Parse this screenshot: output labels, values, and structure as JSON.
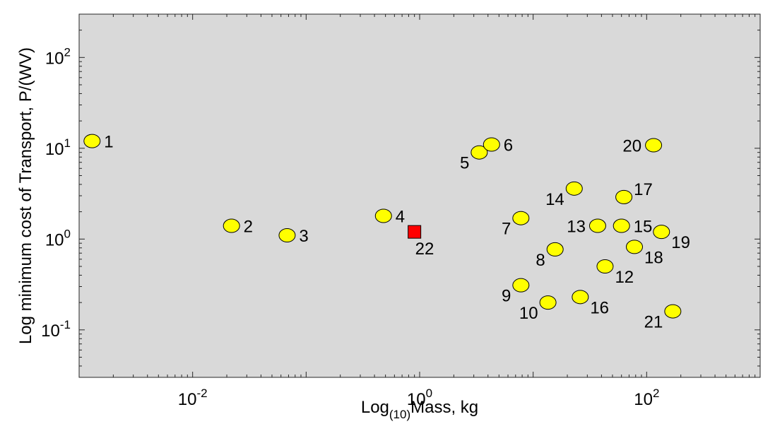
{
  "chart_data": {
    "type": "scatter",
    "title": "",
    "xlabel": {
      "prefix": "Log",
      "subscript": "(10)",
      "suffix": "Mass, kg"
    },
    "ylabel": "Log minimum cost of Transport, P/(WV)",
    "xscale": "log",
    "yscale": "log",
    "xlim": [
      0.001,
      1000
    ],
    "ylim": [
      0.03,
      300
    ],
    "grid": false,
    "x_ticks": [
      {
        "base": "10",
        "exp": "-2",
        "value": 0.01
      },
      {
        "base": "10",
        "exp": "0",
        "value": 1
      },
      {
        "base": "10",
        "exp": "2",
        "value": 100
      }
    ],
    "y_ticks": [
      {
        "base": "10",
        "exp": "-1",
        "value": 0.1
      },
      {
        "base": "10",
        "exp": "0",
        "value": 1
      },
      {
        "base": "10",
        "exp": "1",
        "value": 10
      },
      {
        "base": "10",
        "exp": "2",
        "value": 100
      }
    ],
    "marker_colors": {
      "ellipse": "#ffff00",
      "square": "#ff0000",
      "edge": "#000000",
      "axes": "#d9d9d9"
    },
    "points": [
      {
        "label": "1",
        "x": 0.0013,
        "y": 12.0,
        "marker": "ellipse",
        "label_pos": "right"
      },
      {
        "label": "2",
        "x": 0.022,
        "y": 1.4,
        "marker": "ellipse",
        "label_pos": "right"
      },
      {
        "label": "3",
        "x": 0.068,
        "y": 1.1,
        "marker": "ellipse",
        "label_pos": "right"
      },
      {
        "label": "4",
        "x": 0.48,
        "y": 1.8,
        "marker": "ellipse",
        "label_pos": "right"
      },
      {
        "label": "5",
        "x": 3.35,
        "y": 9.0,
        "marker": "ellipse",
        "label_pos": "lower-left"
      },
      {
        "label": "6",
        "x": 4.3,
        "y": 11.0,
        "marker": "ellipse",
        "label_pos": "right"
      },
      {
        "label": "7",
        "x": 7.8,
        "y": 1.7,
        "marker": "ellipse",
        "label_pos": "lower-left"
      },
      {
        "label": "8",
        "x": 15.6,
        "y": 0.77,
        "marker": "ellipse",
        "label_pos": "lower-left"
      },
      {
        "label": "9",
        "x": 7.8,
        "y": 0.31,
        "marker": "ellipse",
        "label_pos": "lower-left"
      },
      {
        "label": "10",
        "x": 13.5,
        "y": 0.2,
        "marker": "ellipse",
        "label_pos": "lower-left"
      },
      {
        "label": "12",
        "x": 43,
        "y": 0.5,
        "marker": "ellipse",
        "label_pos": "lower-right"
      },
      {
        "label": "13",
        "x": 37,
        "y": 1.4,
        "marker": "ellipse",
        "label_pos": "left"
      },
      {
        "label": "14",
        "x": 23,
        "y": 3.6,
        "marker": "ellipse",
        "label_pos": "lower-left"
      },
      {
        "label": "15",
        "x": 60,
        "y": 1.4,
        "marker": "ellipse",
        "label_pos": "right"
      },
      {
        "label": "16",
        "x": 26,
        "y": 0.23,
        "marker": "ellipse",
        "label_pos": "lower-right"
      },
      {
        "label": "17",
        "x": 63,
        "y": 2.9,
        "marker": "ellipse",
        "label_pos": "upper-right"
      },
      {
        "label": "18",
        "x": 78,
        "y": 0.82,
        "marker": "ellipse",
        "label_pos": "lower-right"
      },
      {
        "label": "19",
        "x": 135,
        "y": 1.2,
        "marker": "ellipse",
        "label_pos": "lower-right"
      },
      {
        "label": "20",
        "x": 115,
        "y": 10.8,
        "marker": "ellipse",
        "label_pos": "left"
      },
      {
        "label": "21",
        "x": 170,
        "y": 0.16,
        "marker": "ellipse",
        "label_pos": "lower-left"
      },
      {
        "label": "22",
        "x": 0.9,
        "y": 1.2,
        "marker": "square",
        "label_pos": "below"
      }
    ]
  }
}
